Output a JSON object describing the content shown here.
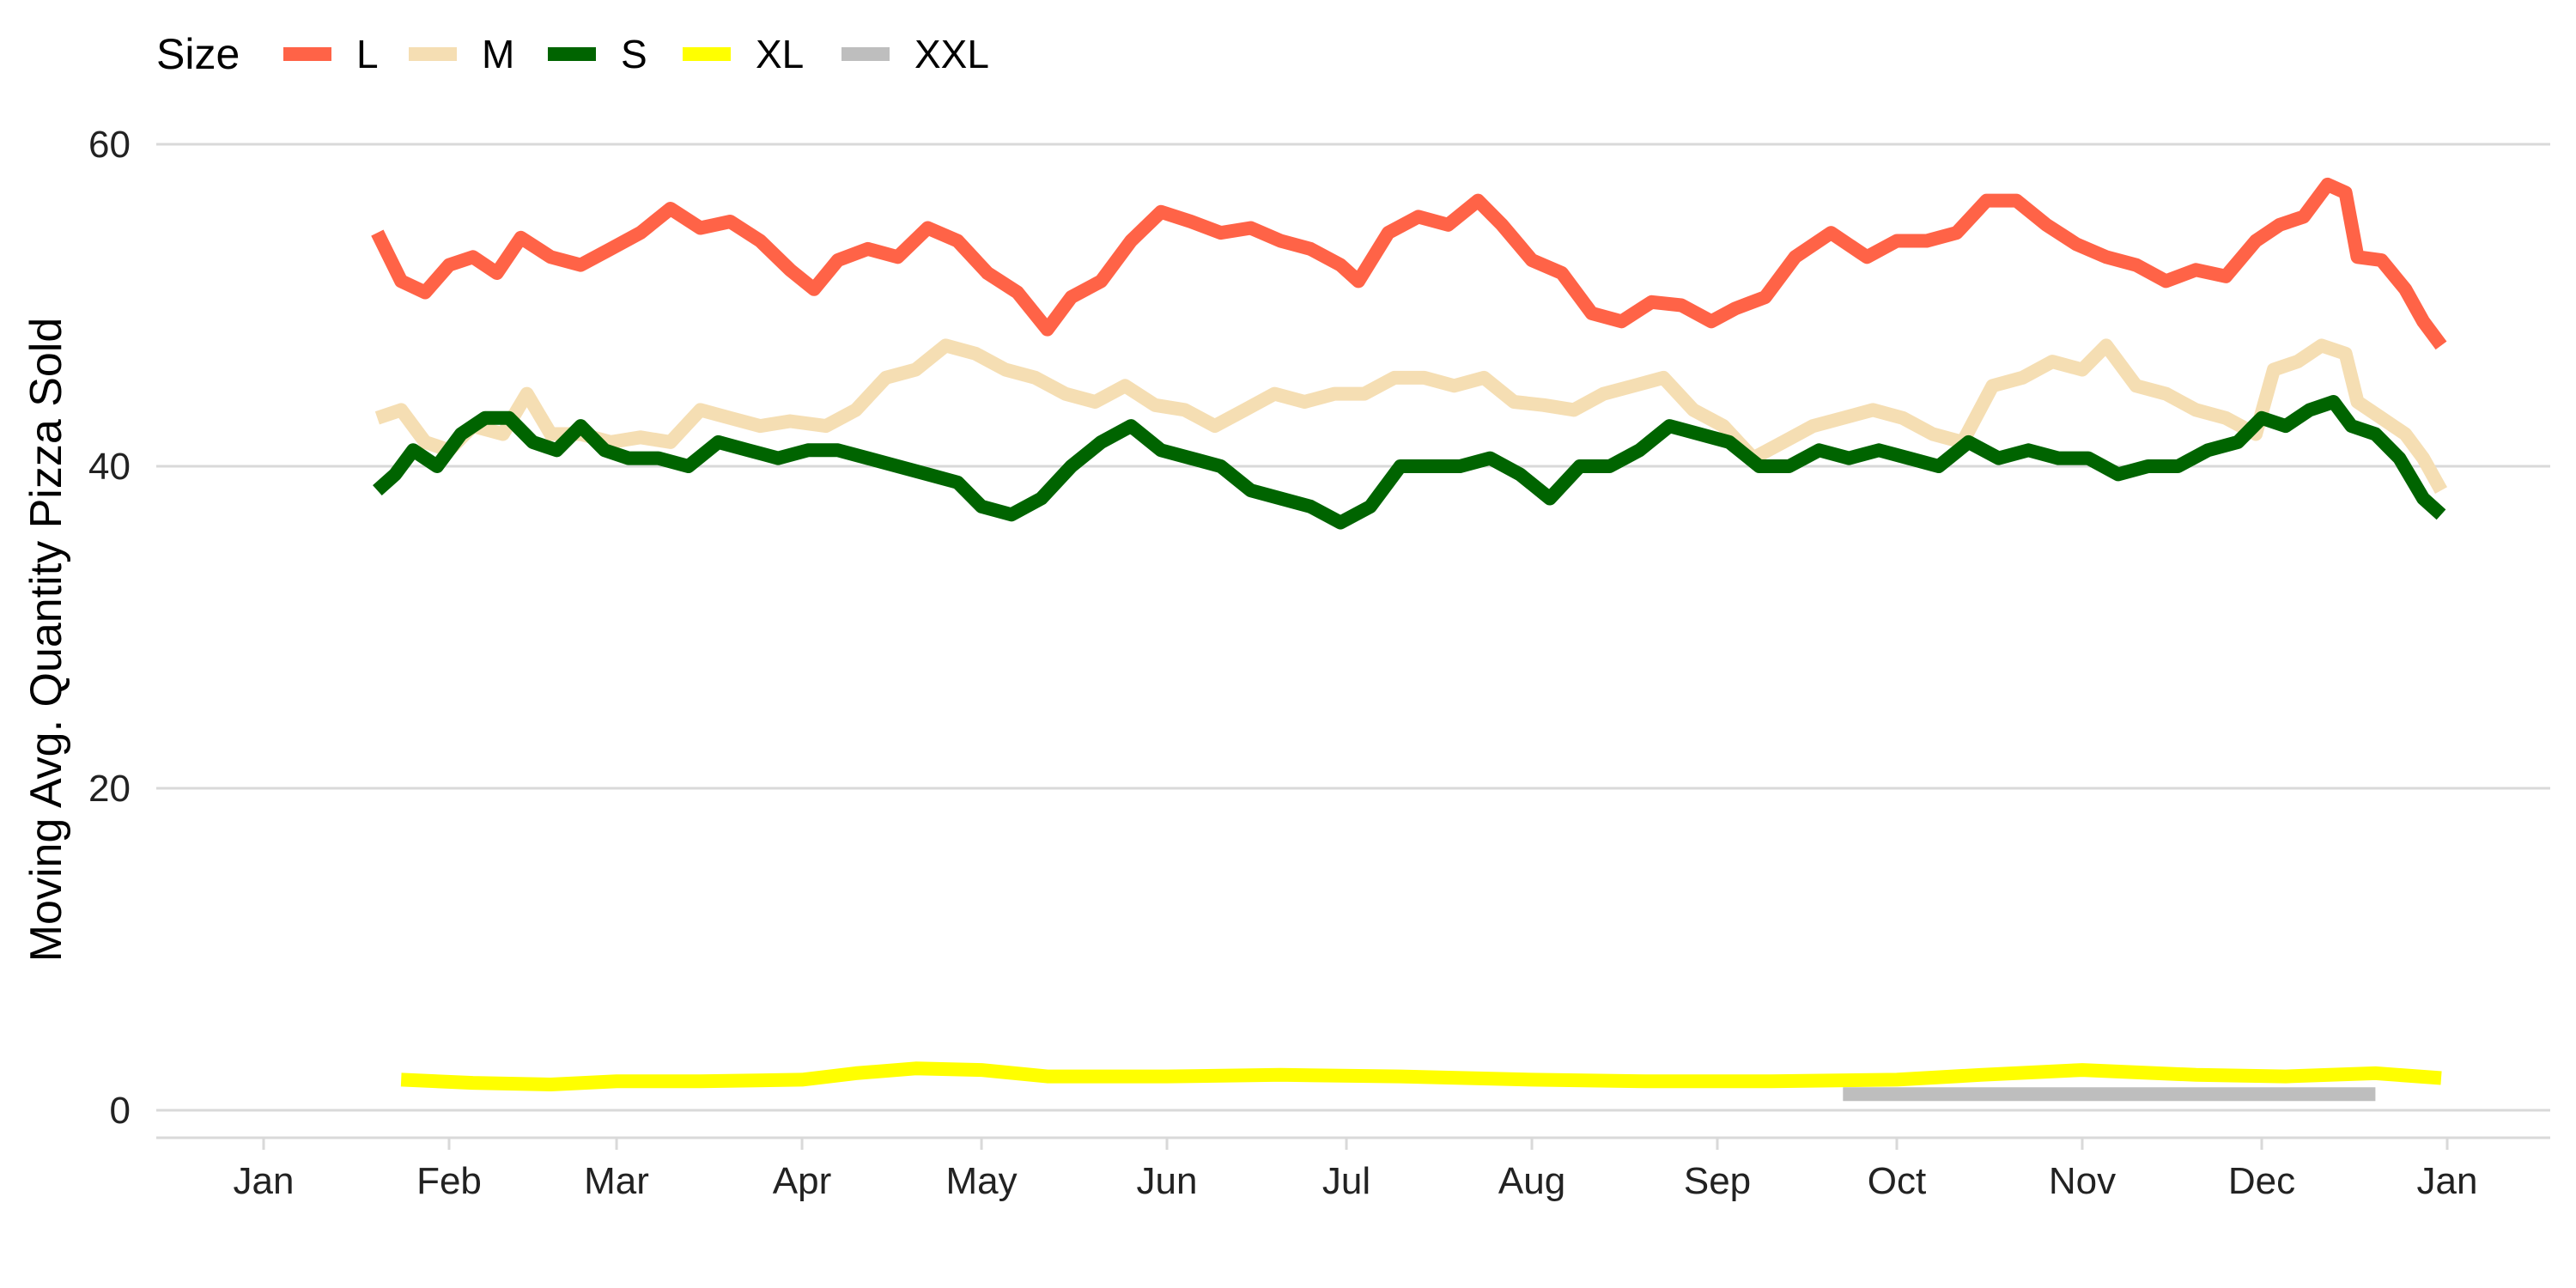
{
  "chart_data": {
    "type": "line",
    "xlabel": "",
    "ylabel": "Moving Avg. Quantity Pizza Sold",
    "ylim": [
      0,
      60
    ],
    "xlim": [
      "2015-01-01",
      "2015-12-31"
    ],
    "yticks": [
      0,
      20,
      40,
      60
    ],
    "xticks": [
      {
        "date": "2015-01-01",
        "label": "Jan"
      },
      {
        "date": "2015-02-01",
        "label": "Feb"
      },
      {
        "date": "2015-03-01",
        "label": "Mar"
      },
      {
        "date": "2015-04-01",
        "label": "Apr"
      },
      {
        "date": "2015-05-01",
        "label": "May"
      },
      {
        "date": "2015-06-01",
        "label": "Jun"
      },
      {
        "date": "2015-07-01",
        "label": "Jul"
      },
      {
        "date": "2015-08-01",
        "label": "Aug"
      },
      {
        "date": "2015-09-01",
        "label": "Sep"
      },
      {
        "date": "2015-10-01",
        "label": "Oct"
      },
      {
        "date": "2015-11-01",
        "label": "Nov"
      },
      {
        "date": "2015-12-01",
        "label": "Dec"
      },
      {
        "date": "2016-01-01",
        "label": "Jan"
      }
    ],
    "grid": "horizontal",
    "legend": {
      "title": "Size",
      "position": "top-left"
    },
    "series": [
      {
        "name": "L",
        "color": "#ff6347",
        "points": [
          [
            "2015-01-20",
            54.5
          ],
          [
            "2015-01-24",
            51.5
          ],
          [
            "2015-01-28",
            50.8
          ],
          [
            "2015-02-01",
            52.5
          ],
          [
            "2015-02-05",
            53.0
          ],
          [
            "2015-02-09",
            52.0
          ],
          [
            "2015-02-13",
            54.2
          ],
          [
            "2015-02-18",
            53.0
          ],
          [
            "2015-02-23",
            52.5
          ],
          [
            "2015-02-28",
            53.5
          ],
          [
            "2015-03-05",
            54.5
          ],
          [
            "2015-03-10",
            56.0
          ],
          [
            "2015-03-15",
            54.8
          ],
          [
            "2015-03-20",
            55.2
          ],
          [
            "2015-03-25",
            54.0
          ],
          [
            "2015-03-30",
            52.2
          ],
          [
            "2015-04-03",
            51.0
          ],
          [
            "2015-04-07",
            52.8
          ],
          [
            "2015-04-12",
            53.5
          ],
          [
            "2015-04-17",
            53.0
          ],
          [
            "2015-04-22",
            54.8
          ],
          [
            "2015-04-27",
            54.0
          ],
          [
            "2015-05-02",
            52.0
          ],
          [
            "2015-05-07",
            50.8
          ],
          [
            "2015-05-12",
            48.5
          ],
          [
            "2015-05-16",
            50.5
          ],
          [
            "2015-05-21",
            51.5
          ],
          [
            "2015-05-26",
            54.0
          ],
          [
            "2015-05-31",
            55.8
          ],
          [
            "2015-06-05",
            55.2
          ],
          [
            "2015-06-10",
            54.5
          ],
          [
            "2015-06-15",
            54.8
          ],
          [
            "2015-06-20",
            54.0
          ],
          [
            "2015-06-25",
            53.5
          ],
          [
            "2015-06-30",
            52.5
          ],
          [
            "2015-07-03",
            51.5
          ],
          [
            "2015-07-08",
            54.5
          ],
          [
            "2015-07-13",
            55.5
          ],
          [
            "2015-07-18",
            55.0
          ],
          [
            "2015-07-23",
            56.5
          ],
          [
            "2015-07-27",
            55.0
          ],
          [
            "2015-08-01",
            52.8
          ],
          [
            "2015-08-06",
            52.0
          ],
          [
            "2015-08-11",
            49.5
          ],
          [
            "2015-08-16",
            49.0
          ],
          [
            "2015-08-21",
            50.2
          ],
          [
            "2015-08-26",
            50.0
          ],
          [
            "2015-08-31",
            49.0
          ],
          [
            "2015-09-04",
            49.8
          ],
          [
            "2015-09-09",
            50.5
          ],
          [
            "2015-09-14",
            53.0
          ],
          [
            "2015-09-20",
            54.5
          ],
          [
            "2015-09-26",
            53.0
          ],
          [
            "2015-10-01",
            54.0
          ],
          [
            "2015-10-06",
            54.0
          ],
          [
            "2015-10-11",
            54.5
          ],
          [
            "2015-10-16",
            56.5
          ],
          [
            "2015-10-21",
            56.5
          ],
          [
            "2015-10-26",
            55.0
          ],
          [
            "2015-10-31",
            53.8
          ],
          [
            "2015-11-05",
            53.0
          ],
          [
            "2015-11-10",
            52.5
          ],
          [
            "2015-11-15",
            51.5
          ],
          [
            "2015-11-20",
            52.2
          ],
          [
            "2015-11-25",
            51.8
          ],
          [
            "2015-11-30",
            54.0
          ],
          [
            "2015-12-04",
            55.0
          ],
          [
            "2015-12-08",
            55.5
          ],
          [
            "2015-12-12",
            57.5
          ],
          [
            "2015-12-15",
            57.0
          ],
          [
            "2015-12-17",
            53.0
          ],
          [
            "2015-12-21",
            52.8
          ],
          [
            "2015-12-25",
            51.0
          ],
          [
            "2015-12-28",
            49.0
          ],
          [
            "2015-12-31",
            47.5
          ]
        ]
      },
      {
        "name": "M",
        "color": "#f5deb3",
        "points": [
          [
            "2015-01-20",
            43.0
          ],
          [
            "2015-01-24",
            43.5
          ],
          [
            "2015-01-28",
            41.5
          ],
          [
            "2015-02-01",
            41.0
          ],
          [
            "2015-02-05",
            42.5
          ],
          [
            "2015-02-10",
            42.0
          ],
          [
            "2015-02-14",
            44.5
          ],
          [
            "2015-02-18",
            42.0
          ],
          [
            "2015-02-23",
            42.0
          ],
          [
            "2015-02-28",
            41.5
          ],
          [
            "2015-03-05",
            41.8
          ],
          [
            "2015-03-10",
            41.5
          ],
          [
            "2015-03-15",
            43.5
          ],
          [
            "2015-03-20",
            43.0
          ],
          [
            "2015-03-25",
            42.5
          ],
          [
            "2015-03-30",
            42.8
          ],
          [
            "2015-04-05",
            42.5
          ],
          [
            "2015-04-10",
            43.5
          ],
          [
            "2015-04-15",
            45.5
          ],
          [
            "2015-04-20",
            46.0
          ],
          [
            "2015-04-25",
            47.5
          ],
          [
            "2015-04-30",
            47.0
          ],
          [
            "2015-05-05",
            46.0
          ],
          [
            "2015-05-10",
            45.5
          ],
          [
            "2015-05-15",
            44.5
          ],
          [
            "2015-05-20",
            44.0
          ],
          [
            "2015-05-25",
            45.0
          ],
          [
            "2015-05-30",
            43.8
          ],
          [
            "2015-06-04",
            43.5
          ],
          [
            "2015-06-09",
            42.5
          ],
          [
            "2015-06-14",
            43.5
          ],
          [
            "2015-06-19",
            44.5
          ],
          [
            "2015-06-24",
            44.0
          ],
          [
            "2015-06-29",
            44.5
          ],
          [
            "2015-07-04",
            44.5
          ],
          [
            "2015-07-09",
            45.5
          ],
          [
            "2015-07-14",
            45.5
          ],
          [
            "2015-07-19",
            45.0
          ],
          [
            "2015-07-24",
            45.5
          ],
          [
            "2015-07-29",
            44.0
          ],
          [
            "2015-08-03",
            43.8
          ],
          [
            "2015-08-08",
            43.5
          ],
          [
            "2015-08-13",
            44.5
          ],
          [
            "2015-08-18",
            45.0
          ],
          [
            "2015-08-23",
            45.5
          ],
          [
            "2015-08-28",
            43.5
          ],
          [
            "2015-09-02",
            42.5
          ],
          [
            "2015-09-07",
            40.5
          ],
          [
            "2015-09-12",
            41.5
          ],
          [
            "2015-09-17",
            42.5
          ],
          [
            "2015-09-22",
            43.0
          ],
          [
            "2015-09-27",
            43.5
          ],
          [
            "2015-10-02",
            43.0
          ],
          [
            "2015-10-07",
            42.0
          ],
          [
            "2015-10-12",
            41.5
          ],
          [
            "2015-10-17",
            45.0
          ],
          [
            "2015-10-22",
            45.5
          ],
          [
            "2015-10-27",
            46.5
          ],
          [
            "2015-11-01",
            46.0
          ],
          [
            "2015-11-05",
            47.5
          ],
          [
            "2015-11-10",
            45.0
          ],
          [
            "2015-11-15",
            44.5
          ],
          [
            "2015-11-20",
            43.5
          ],
          [
            "2015-11-25",
            43.0
          ],
          [
            "2015-11-30",
            42.0
          ],
          [
            "2015-12-03",
            46.0
          ],
          [
            "2015-12-07",
            46.5
          ],
          [
            "2015-12-11",
            47.5
          ],
          [
            "2015-12-15",
            47.0
          ],
          [
            "2015-12-17",
            44.0
          ],
          [
            "2015-12-21",
            43.0
          ],
          [
            "2015-12-25",
            42.0
          ],
          [
            "2015-12-28",
            40.5
          ],
          [
            "2015-12-31",
            38.5
          ]
        ]
      },
      {
        "name": "S",
        "color": "#006400",
        "points": [
          [
            "2015-01-20",
            38.5
          ],
          [
            "2015-01-23",
            39.5
          ],
          [
            "2015-01-26",
            41.0
          ],
          [
            "2015-01-30",
            40.0
          ],
          [
            "2015-02-03",
            42.0
          ],
          [
            "2015-02-07",
            43.0
          ],
          [
            "2015-02-11",
            43.0
          ],
          [
            "2015-02-15",
            41.5
          ],
          [
            "2015-02-19",
            41.0
          ],
          [
            "2015-02-23",
            42.5
          ],
          [
            "2015-02-27",
            41.0
          ],
          [
            "2015-03-03",
            40.5
          ],
          [
            "2015-03-08",
            40.5
          ],
          [
            "2015-03-13",
            40.0
          ],
          [
            "2015-03-18",
            41.5
          ],
          [
            "2015-03-23",
            41.0
          ],
          [
            "2015-03-28",
            40.5
          ],
          [
            "2015-04-02",
            41.0
          ],
          [
            "2015-04-07",
            41.0
          ],
          [
            "2015-04-12",
            40.5
          ],
          [
            "2015-04-17",
            40.0
          ],
          [
            "2015-04-22",
            39.5
          ],
          [
            "2015-04-27",
            39.0
          ],
          [
            "2015-05-01",
            37.5
          ],
          [
            "2015-05-06",
            37.0
          ],
          [
            "2015-05-11",
            38.0
          ],
          [
            "2015-05-16",
            40.0
          ],
          [
            "2015-05-21",
            41.5
          ],
          [
            "2015-05-26",
            42.5
          ],
          [
            "2015-05-31",
            41.0
          ],
          [
            "2015-06-05",
            40.5
          ],
          [
            "2015-06-10",
            40.0
          ],
          [
            "2015-06-15",
            38.5
          ],
          [
            "2015-06-20",
            38.0
          ],
          [
            "2015-06-25",
            37.5
          ],
          [
            "2015-06-30",
            36.5
          ],
          [
            "2015-07-05",
            37.5
          ],
          [
            "2015-07-10",
            40.0
          ],
          [
            "2015-07-15",
            40.0
          ],
          [
            "2015-07-20",
            40.0
          ],
          [
            "2015-07-25",
            40.5
          ],
          [
            "2015-07-30",
            39.5
          ],
          [
            "2015-08-04",
            38.0
          ],
          [
            "2015-08-09",
            40.0
          ],
          [
            "2015-08-14",
            40.0
          ],
          [
            "2015-08-19",
            41.0
          ],
          [
            "2015-08-24",
            42.5
          ],
          [
            "2015-08-29",
            42.0
          ],
          [
            "2015-09-03",
            41.5
          ],
          [
            "2015-09-08",
            40.0
          ],
          [
            "2015-09-13",
            40.0
          ],
          [
            "2015-09-18",
            41.0
          ],
          [
            "2015-09-23",
            40.5
          ],
          [
            "2015-09-28",
            41.0
          ],
          [
            "2015-10-03",
            40.5
          ],
          [
            "2015-10-08",
            40.0
          ],
          [
            "2015-10-13",
            41.5
          ],
          [
            "2015-10-18",
            40.5
          ],
          [
            "2015-10-23",
            41.0
          ],
          [
            "2015-10-28",
            40.5
          ],
          [
            "2015-11-02",
            40.5
          ],
          [
            "2015-11-07",
            39.5
          ],
          [
            "2015-11-12",
            40.0
          ],
          [
            "2015-11-17",
            40.0
          ],
          [
            "2015-11-22",
            41.0
          ],
          [
            "2015-11-27",
            41.5
          ],
          [
            "2015-12-01",
            43.0
          ],
          [
            "2015-12-05",
            42.5
          ],
          [
            "2015-12-09",
            43.5
          ],
          [
            "2015-12-13",
            44.0
          ],
          [
            "2015-12-16",
            42.5
          ],
          [
            "2015-12-20",
            42.0
          ],
          [
            "2015-12-24",
            40.5
          ],
          [
            "2015-12-28",
            38.0
          ],
          [
            "2015-12-31",
            37.0
          ]
        ]
      },
      {
        "name": "XL",
        "color": "#ffff00",
        "points": [
          [
            "2015-01-24",
            1.9
          ],
          [
            "2015-02-05",
            1.7
          ],
          [
            "2015-02-18",
            1.6
          ],
          [
            "2015-03-01",
            1.8
          ],
          [
            "2015-03-15",
            1.8
          ],
          [
            "2015-04-01",
            1.9
          ],
          [
            "2015-04-10",
            2.3
          ],
          [
            "2015-04-20",
            2.6
          ],
          [
            "2015-05-01",
            2.5
          ],
          [
            "2015-05-12",
            2.1
          ],
          [
            "2015-06-01",
            2.1
          ],
          [
            "2015-06-20",
            2.2
          ],
          [
            "2015-07-10",
            2.1
          ],
          [
            "2015-08-01",
            1.9
          ],
          [
            "2015-08-20",
            1.8
          ],
          [
            "2015-09-10",
            1.8
          ],
          [
            "2015-10-01",
            1.9
          ],
          [
            "2015-10-15",
            2.2
          ],
          [
            "2015-11-01",
            2.5
          ],
          [
            "2015-11-20",
            2.2
          ],
          [
            "2015-12-05",
            2.1
          ],
          [
            "2015-12-20",
            2.3
          ],
          [
            "2015-12-31",
            2.0
          ]
        ]
      },
      {
        "name": "XXL",
        "color": "#bebebe",
        "points": [
          [
            "2015-09-22",
            1.0
          ],
          [
            "2015-12-20",
            1.0
          ]
        ]
      }
    ]
  }
}
